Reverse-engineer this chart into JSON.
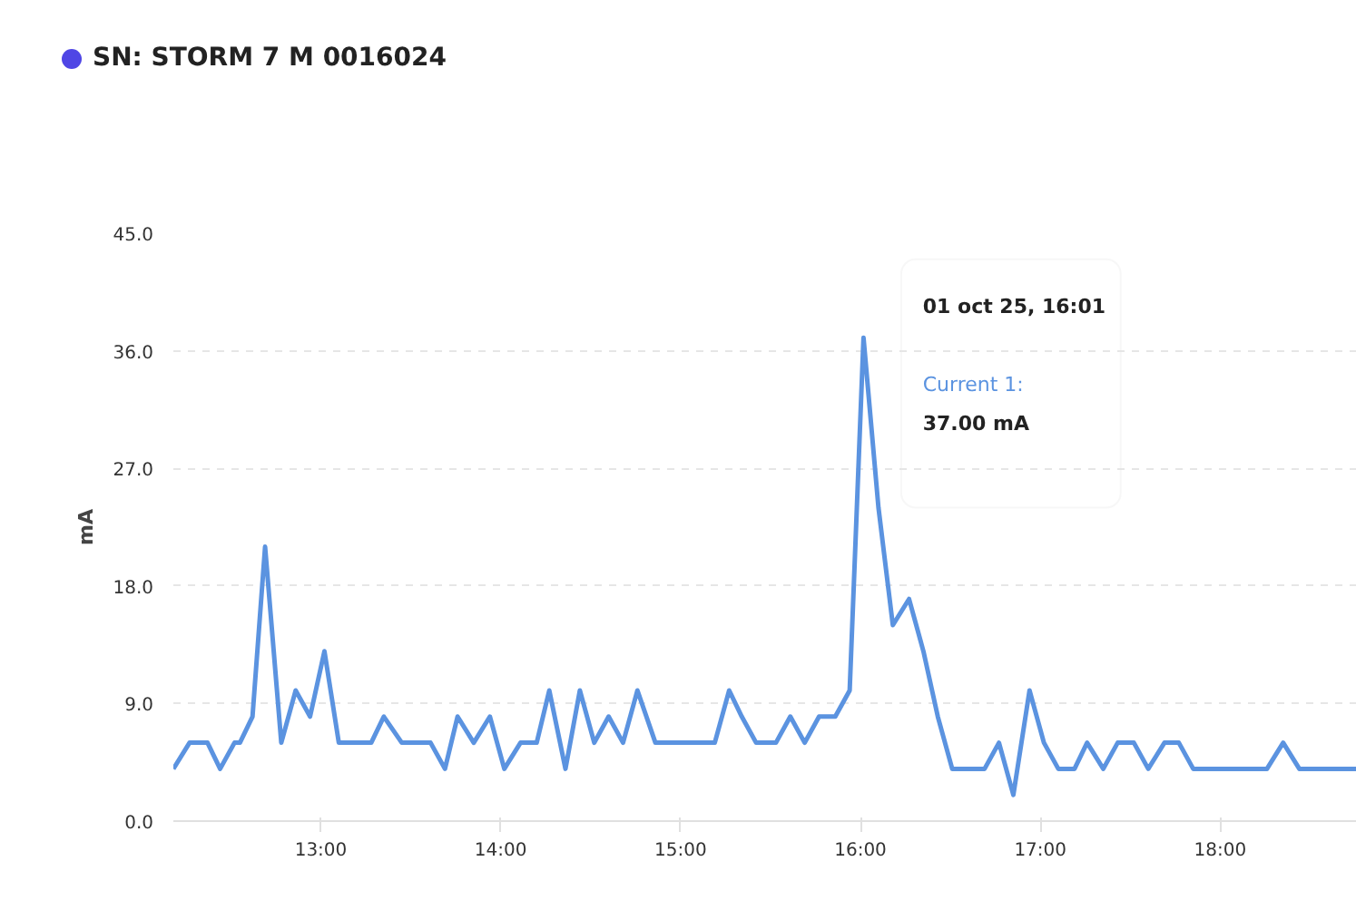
{
  "chart_data": {
    "type": "line",
    "title": "SN: STORM 7 M 0016024",
    "ylabel": "mA",
    "x": [
      12.18,
      12.27,
      12.37,
      12.44,
      12.52,
      12.55,
      12.62,
      12.69,
      12.78,
      12.86,
      12.94,
      13.02,
      13.1,
      13.28,
      13.35,
      13.45,
      13.61,
      13.69,
      13.76,
      13.85,
      13.94,
      14.02,
      14.11,
      14.2,
      14.27,
      14.36,
      14.44,
      14.52,
      14.6,
      14.68,
      14.76,
      14.86,
      15.19,
      15.27,
      15.34,
      15.42,
      15.53,
      15.61,
      15.69,
      15.77,
      15.86,
      15.94,
      16.017,
      16.1,
      16.18,
      16.27,
      16.35,
      16.43,
      16.51,
      16.69,
      16.77,
      16.85,
      16.94,
      17.02,
      17.1,
      17.19,
      17.26,
      17.35,
      17.43,
      17.52,
      17.6,
      17.69,
      17.77,
      17.85,
      18.26,
      18.35,
      18.44,
      18.76
    ],
    "series": [
      {
        "name": "Current 1:",
        "color": "#5b93e0",
        "values": [
          4,
          6,
          6,
          4,
          6,
          6,
          8,
          21,
          6,
          10,
          8,
          13,
          6,
          6,
          8,
          6,
          6,
          4,
          8,
          6,
          8,
          4,
          6,
          6,
          10,
          4,
          10,
          6,
          8,
          6,
          10,
          6,
          6,
          10,
          8,
          6,
          6,
          8,
          6,
          8,
          8,
          10,
          37,
          24,
          15,
          17,
          13,
          8,
          4,
          4,
          6,
          2,
          10,
          6,
          4,
          4,
          6,
          4,
          6,
          6,
          4,
          6,
          6,
          4,
          4,
          6,
          4,
          4
        ]
      }
    ],
    "xlim": [
      12.18,
      18.76
    ],
    "ylim": [
      0,
      45
    ],
    "xticks": [
      {
        "value": 13,
        "label": "13:00"
      },
      {
        "value": 14,
        "label": "14:00"
      },
      {
        "value": 15,
        "label": "15:00"
      },
      {
        "value": 16,
        "label": "16:00"
      },
      {
        "value": 17,
        "label": "17:00"
      },
      {
        "value": 18,
        "label": "18:00"
      }
    ],
    "yticks": [
      {
        "value": 0,
        "label": "0.0"
      },
      {
        "value": 9,
        "label": "9.0"
      },
      {
        "value": 18,
        "label": "18.0"
      },
      {
        "value": 27,
        "label": "27.0"
      },
      {
        "value": 36,
        "label": "36.0"
      },
      {
        "value": 45,
        "label": "45.0"
      }
    ],
    "grid": "y",
    "legend": false,
    "line_style": "solid",
    "marker": "none",
    "annotations": [
      "01 oct 25, 16:01",
      "37.00 mA"
    ]
  }
}
